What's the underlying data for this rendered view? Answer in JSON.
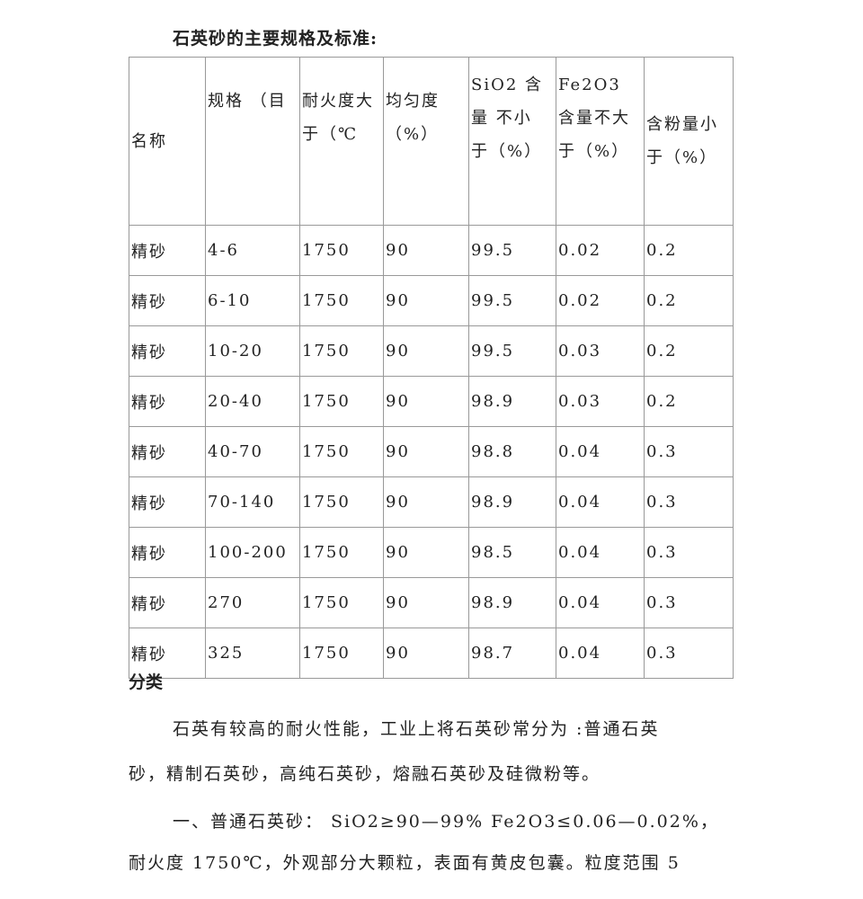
{
  "title": "石英砂的主要规格及标准:",
  "table": {
    "headers": [
      "名称",
      "规格 （目",
      "耐火度大于（℃",
      "均匀度（%）",
      "SiO2 含量 不小于（%）",
      "Fe2O3 含量不大于（%）",
      "含粉量小于（%）"
    ],
    "rows": [
      [
        "精砂",
        "4-6",
        "1750",
        "90",
        "99.5",
        "0.02",
        "0.2"
      ],
      [
        "精砂",
        "6-10",
        "1750",
        "90",
        "99.5",
        "0.02",
        "0.2"
      ],
      [
        "精砂",
        "10-20",
        "1750",
        "90",
        "99.5",
        "0.03",
        "0.2"
      ],
      [
        "精砂",
        "20-40",
        "1750",
        "90",
        "98.9",
        "0.03",
        "0.2"
      ],
      [
        "精砂",
        "40-70",
        "1750",
        "90",
        "98.8",
        "0.04",
        "0.3"
      ],
      [
        "精砂",
        "70-140",
        "1750",
        "90",
        "98.9",
        "0.04",
        "0.3"
      ],
      [
        "精砂",
        "100-200",
        "1750",
        "90",
        "98.5",
        "0.04",
        "0.3"
      ],
      [
        "精砂",
        "270",
        "1750",
        "90",
        "98.9",
        "0.04",
        "0.3"
      ],
      [
        "精砂",
        "325",
        "1750",
        "90",
        "98.7",
        "0.04",
        "0.3"
      ]
    ]
  },
  "section_heading": "分类",
  "paragraphs": [
    "石英有较高的耐火性能，工业上将石英砂常分为 :普通石英",
    "砂，精制石英砂，高纯石英砂，熔融石英砂及硅微粉等。",
    "一、普通石英砂：  SiO2≥90—99%  Fe2O3≤0.06—0.02%，",
    "耐火度 1750℃，外观部分大颗粒，表面有黄皮包囊。粒度范围  5"
  ]
}
